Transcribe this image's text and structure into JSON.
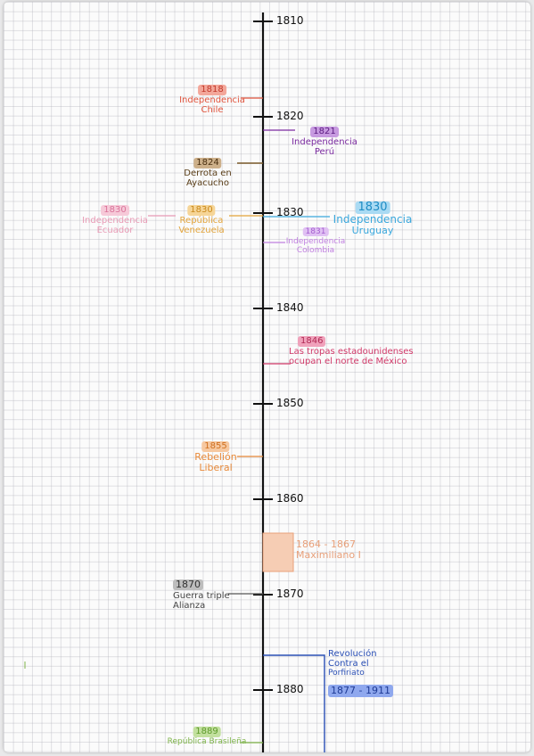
{
  "ticks": [
    "1810",
    "1820",
    "1830",
    "1840",
    "1850",
    "1860",
    "1870",
    "1880"
  ],
  "events": {
    "chile": {
      "year": "1818",
      "line1": "Independencia",
      "line2": "Chile",
      "color": "#e0533c",
      "bg": "#f3a79a"
    },
    "peru": {
      "year": "1821",
      "line1": "Independencia",
      "line2": "Perú",
      "color": "#7b2aa0",
      "bg": "#c79ae0"
    },
    "ayacucho": {
      "year": "1824",
      "line1": "Derrota en",
      "line2": "Ayacucho",
      "color": "#7a5a2b",
      "bg": "#cdb08a"
    },
    "ecuador": {
      "year": "1830",
      "line1": "Independencia",
      "line2": "Ecuador",
      "color": "#e89ab5",
      "bg": "#f6c9d8"
    },
    "venezuela": {
      "year": "1830",
      "line1": "República",
      "line2": "Venezuela",
      "color": "#e3a43a",
      "bg": "#f6d597"
    },
    "uruguay": {
      "year": "1830",
      "line1": "Independencia",
      "line2": "Uruguay",
      "color": "#3aa8dd",
      "bg": "#a9daf3"
    },
    "colombia": {
      "year": "1831",
      "line1": "Independencia",
      "line2": "Colombia",
      "color": "#c07fe0",
      "bg": "#e0c0f3"
    },
    "mexico": {
      "year": "1846",
      "line1": "Las tropas estadounidenses",
      "line2": "ocupan el norte de México",
      "color": "#d23a6a",
      "bg": "#f0a2bb"
    },
    "liberal": {
      "year": "1855",
      "line1": "Rebelión",
      "line2": "Liberal",
      "color": "#e88a3a",
      "bg": "#f6c8a0"
    },
    "maximiliano": {
      "year": "1864 - 1867",
      "line1": "Maximiliano I",
      "color": "#e8a07a",
      "bg": "#f6cdb4"
    },
    "triple": {
      "year": "1870",
      "line1": "Guerra triple",
      "line2": "Alianza",
      "color": "#555555",
      "bg": "#bdbdbd"
    },
    "porfiriato": {
      "line1": "Revolución",
      "line2": "Contra el",
      "line3": "Porfiriato",
      "year": "1877 - 1911",
      "color": "#2a4fb5",
      "bg": "#8fa8ee"
    },
    "brasil": {
      "year": "1889",
      "line1": "República Brasileña",
      "color": "#7fb54a",
      "bg": "#c2e09e"
    }
  }
}
